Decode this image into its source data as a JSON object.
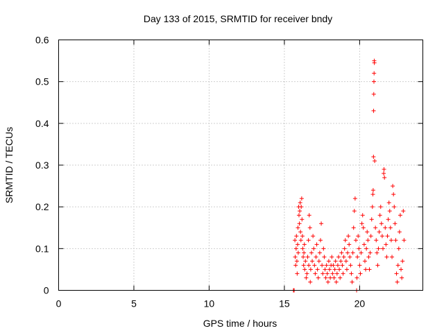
{
  "chart_data": {
    "type": "scatter",
    "title": "Day 133 of 2015, SRMTID for receiver bndy",
    "xlabel": "GPS time / hours",
    "ylabel": "SRMTID / TECUs",
    "xlim": [
      0,
      24.2
    ],
    "ylim": [
      0,
      0.6
    ],
    "xticks": [
      0,
      5,
      10,
      15,
      20
    ],
    "xtick_labels": [
      "0",
      "5",
      "10",
      "15",
      "20"
    ],
    "yticks": [
      0,
      0.1,
      0.2,
      0.3,
      0.4,
      0.5,
      0.6
    ],
    "ytick_labels": [
      "0",
      "0.1",
      "0.2",
      "0.3",
      "0.4",
      "0.5",
      "0.6"
    ],
    "grid": true,
    "marker": "+",
    "color": "#ff0000",
    "series": [
      {
        "name": "SRMTID",
        "points": [
          [
            15.6,
            0.0
          ],
          [
            15.65,
            0.0
          ],
          [
            15.7,
            0.12
          ],
          [
            15.72,
            0.08
          ],
          [
            15.75,
            0.06
          ],
          [
            15.78,
            0.1
          ],
          [
            15.8,
            0.13
          ],
          [
            15.83,
            0.07
          ],
          [
            15.85,
            0.04
          ],
          [
            15.88,
            0.11
          ],
          [
            15.9,
            0.15
          ],
          [
            15.92,
            0.09
          ],
          [
            15.95,
            0.2
          ],
          [
            15.97,
            0.18
          ],
          [
            16.0,
            0.16
          ],
          [
            16.02,
            0.19
          ],
          [
            16.05,
            0.21
          ],
          [
            16.07,
            0.14
          ],
          [
            16.1,
            0.12
          ],
          [
            16.12,
            0.2
          ],
          [
            16.15,
            0.22
          ],
          [
            16.17,
            0.17
          ],
          [
            16.2,
            0.13
          ],
          [
            16.22,
            0.1
          ],
          [
            16.25,
            0.08
          ],
          [
            16.28,
            0.06
          ],
          [
            16.3,
            0.09
          ],
          [
            16.33,
            0.11
          ],
          [
            16.35,
            0.05
          ],
          [
            16.4,
            0.07
          ],
          [
            16.45,
            0.03
          ],
          [
            16.5,
            0.04
          ],
          [
            16.55,
            0.08
          ],
          [
            16.6,
            0.12
          ],
          [
            16.62,
            0.06
          ],
          [
            16.65,
            0.18
          ],
          [
            16.7,
            0.15
          ],
          [
            16.72,
            0.02
          ],
          [
            16.75,
            0.05
          ],
          [
            16.8,
            0.09
          ],
          [
            16.85,
            0.07
          ],
          [
            16.9,
            0.13
          ],
          [
            16.95,
            0.1
          ],
          [
            17.0,
            0.06
          ],
          [
            17.05,
            0.04
          ],
          [
            17.1,
            0.08
          ],
          [
            17.15,
            0.11
          ],
          [
            17.2,
            0.05
          ],
          [
            17.25,
            0.03
          ],
          [
            17.3,
            0.07
          ],
          [
            17.35,
            0.09
          ],
          [
            17.4,
            0.12
          ],
          [
            17.45,
            0.16
          ],
          [
            17.5,
            0.06
          ],
          [
            17.55,
            0.04
          ],
          [
            17.6,
            0.1
          ],
          [
            17.65,
            0.08
          ],
          [
            17.7,
            0.05
          ],
          [
            17.75,
            0.03
          ],
          [
            17.8,
            0.06
          ],
          [
            17.85,
            0.04
          ],
          [
            17.9,
            0.02
          ],
          [
            17.95,
            0.07
          ],
          [
            18.0,
            0.05
          ],
          [
            18.05,
            0.03
          ],
          [
            18.1,
            0.06
          ],
          [
            18.15,
            0.08
          ],
          [
            18.2,
            0.04
          ],
          [
            18.25,
            0.06
          ],
          [
            18.3,
            0.03
          ],
          [
            18.35,
            0.05
          ],
          [
            18.4,
            0.07
          ],
          [
            18.45,
            0.02
          ],
          [
            18.5,
            0.04
          ],
          [
            18.55,
            0.06
          ],
          [
            18.6,
            0.08
          ],
          [
            18.65,
            0.05
          ],
          [
            18.7,
            0.03
          ],
          [
            18.75,
            0.07
          ],
          [
            18.8,
            0.09
          ],
          [
            18.85,
            0.06
          ],
          [
            18.9,
            0.04
          ],
          [
            18.95,
            0.08
          ],
          [
            19.0,
            0.1
          ],
          [
            19.05,
            0.12
          ],
          [
            19.1,
            0.07
          ],
          [
            19.15,
            0.05
          ],
          [
            19.2,
            0.09
          ],
          [
            19.25,
            0.13
          ],
          [
            19.3,
            0.11
          ],
          [
            19.35,
            0.08
          ],
          [
            19.4,
            0.06
          ],
          [
            19.45,
            0.04
          ],
          [
            19.5,
            0.02
          ],
          [
            19.55,
            0.09
          ],
          [
            19.6,
            0.15
          ],
          [
            19.65,
            0.19
          ],
          [
            19.7,
            0.22
          ],
          [
            19.75,
            0.12
          ],
          [
            19.8,
            0.0
          ],
          [
            19.82,
            0.03
          ],
          [
            19.85,
            0.08
          ],
          [
            19.9,
            0.13
          ],
          [
            19.95,
            0.1
          ],
          [
            20.0,
            0.06
          ],
          [
            20.05,
            0.04
          ],
          [
            20.1,
            0.09
          ],
          [
            20.15,
            0.16
          ],
          [
            20.2,
            0.18
          ],
          [
            20.25,
            0.15
          ],
          [
            20.3,
            0.11
          ],
          [
            20.35,
            0.07
          ],
          [
            20.4,
            0.05
          ],
          [
            20.45,
            0.1
          ],
          [
            20.5,
            0.14
          ],
          [
            20.55,
            0.12
          ],
          [
            20.6,
            0.08
          ],
          [
            20.65,
            0.05
          ],
          [
            20.7,
            0.09
          ],
          [
            20.75,
            0.13
          ],
          [
            20.8,
            0.17
          ],
          [
            20.85,
            0.2
          ],
          [
            20.88,
            0.23
          ],
          [
            20.9,
            0.24
          ],
          [
            20.92,
            0.32
          ],
          [
            20.93,
            0.43
          ],
          [
            20.94,
            0.47
          ],
          [
            20.95,
            0.5
          ],
          [
            20.96,
            0.52
          ],
          [
            20.97,
            0.55
          ],
          [
            20.98,
            0.545
          ],
          [
            21.0,
            0.31
          ],
          [
            21.05,
            0.15
          ],
          [
            21.1,
            0.12
          ],
          [
            21.15,
            0.09
          ],
          [
            21.2,
            0.06
          ],
          [
            21.25,
            0.1
          ],
          [
            21.3,
            0.14
          ],
          [
            21.35,
            0.18
          ],
          [
            21.4,
            0.2
          ],
          [
            21.45,
            0.16
          ],
          [
            21.5,
            0.13
          ],
          [
            21.55,
            0.1
          ],
          [
            21.6,
            0.28
          ],
          [
            21.62,
            0.29
          ],
          [
            21.65,
            0.27
          ],
          [
            21.7,
            0.15
          ],
          [
            21.75,
            0.11
          ],
          [
            21.8,
            0.08
          ],
          [
            21.85,
            0.13
          ],
          [
            21.9,
            0.17
          ],
          [
            21.95,
            0.21
          ],
          [
            22.0,
            0.19
          ],
          [
            22.05,
            0.15
          ],
          [
            22.1,
            0.12
          ],
          [
            22.15,
            0.08
          ],
          [
            22.2,
            0.25
          ],
          [
            22.25,
            0.23
          ],
          [
            22.3,
            0.2
          ],
          [
            22.35,
            0.16
          ],
          [
            22.4,
            0.12
          ],
          [
            22.45,
            0.04
          ],
          [
            22.5,
            0.02
          ],
          [
            22.55,
            0.06
          ],
          [
            22.6,
            0.1
          ],
          [
            22.65,
            0.14
          ],
          [
            22.7,
            0.18
          ],
          [
            22.75,
            0.05
          ],
          [
            22.8,
            0.03
          ],
          [
            22.85,
            0.07
          ],
          [
            22.9,
            0.19
          ],
          [
            22.95,
            0.12
          ]
        ]
      }
    ]
  }
}
